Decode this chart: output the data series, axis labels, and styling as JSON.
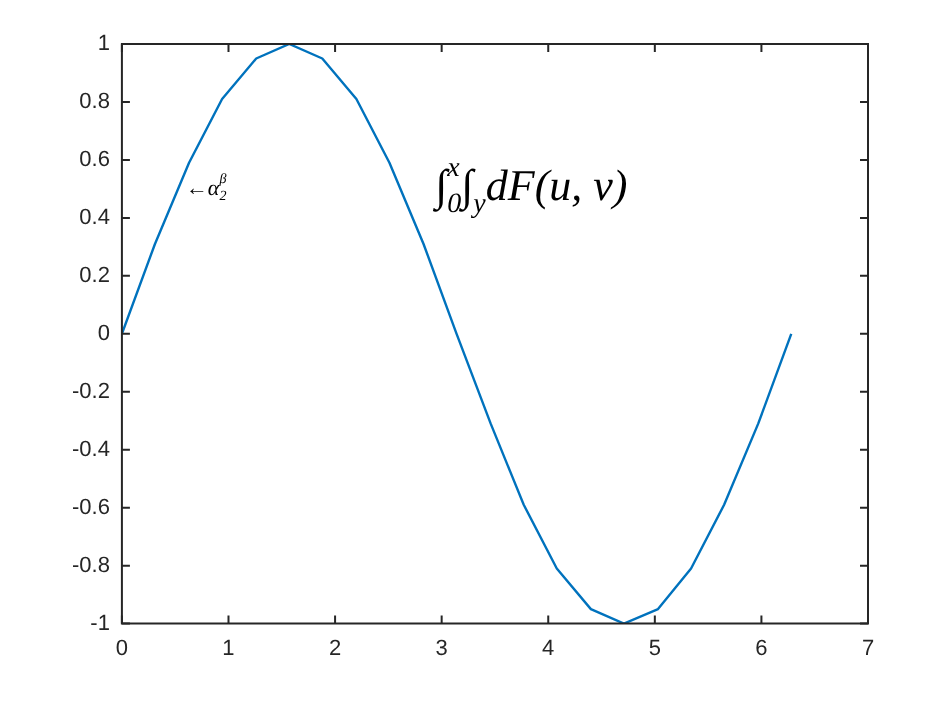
{
  "chart_data": {
    "type": "line",
    "x": [
      0,
      0.31,
      0.63,
      0.94,
      1.26,
      1.57,
      1.88,
      2.2,
      2.51,
      2.83,
      3.14,
      3.46,
      3.77,
      4.08,
      4.4,
      4.71,
      5.03,
      5.34,
      5.65,
      5.97,
      6.28
    ],
    "series": [
      {
        "color": "#0072bd",
        "values": [
          0,
          0.31,
          0.59,
          0.81,
          0.95,
          1,
          0.95,
          0.81,
          0.59,
          0.31,
          0,
          -0.31,
          -0.59,
          -0.81,
          -0.95,
          -1,
          -0.95,
          -0.81,
          -0.59,
          -0.31,
          0
        ]
      }
    ],
    "xlim": [
      0,
      7
    ],
    "xticks": [
      0,
      1,
      2,
      3,
      4,
      5,
      6,
      7
    ],
    "ylim": [
      -1,
      1
    ],
    "yticks": [
      -1,
      -0.8,
      -0.6,
      -0.4,
      -0.2,
      0,
      0.2,
      0.4,
      0.6,
      0.8,
      1
    ],
    "grid": false,
    "legend": false,
    "marker": "none",
    "line_style": "solid",
    "annotations": [
      {
        "text": "←α$_{2}$$^{β}$",
        "x": 0.6,
        "y": 0.5
      },
      "∫$_{0}$$^{x}$∫$_{y}$dF(u, v)"
    ]
  }
}
